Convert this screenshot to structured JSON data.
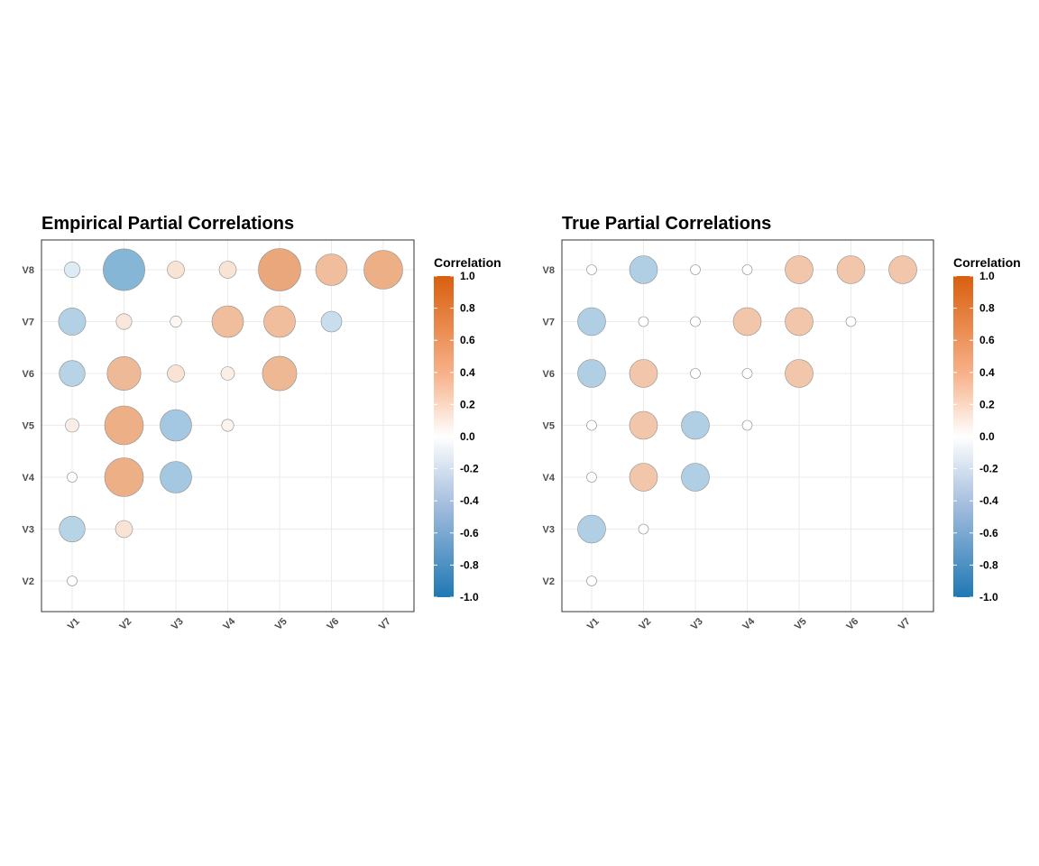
{
  "chart_data": [
    {
      "type": "scatter",
      "subtype": "correlation-bubble-lower-triangle",
      "title": "Empirical Partial Correlations",
      "x_categories": [
        "V1",
        "V2",
        "V3",
        "V4",
        "V5",
        "V6",
        "V7"
      ],
      "y_categories": [
        "V2",
        "V3",
        "V4",
        "V5",
        "V6",
        "V7",
        "V8"
      ],
      "cells": [
        {
          "x": "V1",
          "y": "V2",
          "value": 0.0
        },
        {
          "x": "V1",
          "y": "V3",
          "value": -0.22
        },
        {
          "x": "V1",
          "y": "V4",
          "value": 0.0
        },
        {
          "x": "V1",
          "y": "V5",
          "value": 0.05
        },
        {
          "x": "V1",
          "y": "V6",
          "value": -0.22
        },
        {
          "x": "V1",
          "y": "V7",
          "value": -0.24
        },
        {
          "x": "V1",
          "y": "V8",
          "value": -0.08
        },
        {
          "x": "V2",
          "y": "V3",
          "value": 0.1
        },
        {
          "x": "V2",
          "y": "V4",
          "value": 0.4
        },
        {
          "x": "V2",
          "y": "V5",
          "value": 0.4
        },
        {
          "x": "V2",
          "y": "V6",
          "value": 0.33
        },
        {
          "x": "V2",
          "y": "V7",
          "value": 0.08
        },
        {
          "x": "V2",
          "y": "V8",
          "value": -0.44
        },
        {
          "x": "V3",
          "y": "V4",
          "value": -0.3
        },
        {
          "x": "V3",
          "y": "V5",
          "value": -0.3
        },
        {
          "x": "V3",
          "y": "V6",
          "value": 0.1
        },
        {
          "x": "V3",
          "y": "V7",
          "value": 0.02
        },
        {
          "x": "V3",
          "y": "V8",
          "value": 0.1
        },
        {
          "x": "V4",
          "y": "V5",
          "value": 0.03
        },
        {
          "x": "V4",
          "y": "V6",
          "value": 0.05
        },
        {
          "x": "V4",
          "y": "V7",
          "value": 0.3
        },
        {
          "x": "V4",
          "y": "V8",
          "value": 0.1
        },
        {
          "x": "V5",
          "y": "V6",
          "value": 0.34
        },
        {
          "x": "V5",
          "y": "V7",
          "value": 0.3
        },
        {
          "x": "V5",
          "y": "V8",
          "value": 0.45
        },
        {
          "x": "V6",
          "y": "V7",
          "value": -0.15
        },
        {
          "x": "V6",
          "y": "V8",
          "value": 0.3
        },
        {
          "x": "V7",
          "y": "V8",
          "value": 0.4
        }
      ],
      "legend": {
        "title": "Correlation",
        "ticks": [
          "1.0",
          "0.8",
          "0.6",
          "0.4",
          "0.2",
          "0.0",
          "-0.2",
          "-0.4",
          "-0.6",
          "-0.8",
          "-1.0"
        ],
        "range": [
          -1,
          1
        ],
        "colors": {
          "high": "#d95f0e",
          "mid": "#ffffff",
          "low": "#1f78b4"
        }
      },
      "grid": true
    },
    {
      "type": "scatter",
      "subtype": "correlation-bubble-lower-triangle",
      "title": "True Partial Correlations",
      "x_categories": [
        "V1",
        "V2",
        "V3",
        "V4",
        "V5",
        "V6",
        "V7"
      ],
      "y_categories": [
        "V2",
        "V3",
        "V4",
        "V5",
        "V6",
        "V7",
        "V8"
      ],
      "cells": [
        {
          "x": "V1",
          "y": "V2",
          "value": 0.0
        },
        {
          "x": "V1",
          "y": "V3",
          "value": -0.25
        },
        {
          "x": "V1",
          "y": "V4",
          "value": 0.0
        },
        {
          "x": "V1",
          "y": "V5",
          "value": 0.0
        },
        {
          "x": "V1",
          "y": "V6",
          "value": -0.25
        },
        {
          "x": "V1",
          "y": "V7",
          "value": -0.25
        },
        {
          "x": "V1",
          "y": "V8",
          "value": 0.0
        },
        {
          "x": "V2",
          "y": "V3",
          "value": 0.0
        },
        {
          "x": "V2",
          "y": "V4",
          "value": 0.25
        },
        {
          "x": "V2",
          "y": "V5",
          "value": 0.25
        },
        {
          "x": "V2",
          "y": "V6",
          "value": 0.25
        },
        {
          "x": "V2",
          "y": "V7",
          "value": 0.0
        },
        {
          "x": "V2",
          "y": "V8",
          "value": -0.25
        },
        {
          "x": "V3",
          "y": "V4",
          "value": -0.25
        },
        {
          "x": "V3",
          "y": "V5",
          "value": -0.25
        },
        {
          "x": "V3",
          "y": "V6",
          "value": 0.0
        },
        {
          "x": "V3",
          "y": "V7",
          "value": 0.0
        },
        {
          "x": "V3",
          "y": "V8",
          "value": 0.0
        },
        {
          "x": "V4",
          "y": "V5",
          "value": 0.0
        },
        {
          "x": "V4",
          "y": "V6",
          "value": 0.0
        },
        {
          "x": "V4",
          "y": "V7",
          "value": 0.25
        },
        {
          "x": "V4",
          "y": "V8",
          "value": 0.0
        },
        {
          "x": "V5",
          "y": "V6",
          "value": 0.25
        },
        {
          "x": "V5",
          "y": "V7",
          "value": 0.25
        },
        {
          "x": "V5",
          "y": "V8",
          "value": 0.25
        },
        {
          "x": "V6",
          "y": "V7",
          "value": 0.0
        },
        {
          "x": "V6",
          "y": "V8",
          "value": 0.25
        },
        {
          "x": "V7",
          "y": "V8",
          "value": 0.25
        }
      ],
      "legend": {
        "title": "Correlation",
        "ticks": [
          "1.0",
          "0.8",
          "0.6",
          "0.4",
          "0.2",
          "0.0",
          "-0.2",
          "-0.4",
          "-0.6",
          "-0.8",
          "-1.0"
        ],
        "range": [
          -1,
          1
        ],
        "colors": {
          "high": "#d95f0e",
          "mid": "#ffffff",
          "low": "#1f78b4"
        }
      },
      "grid": true
    }
  ]
}
